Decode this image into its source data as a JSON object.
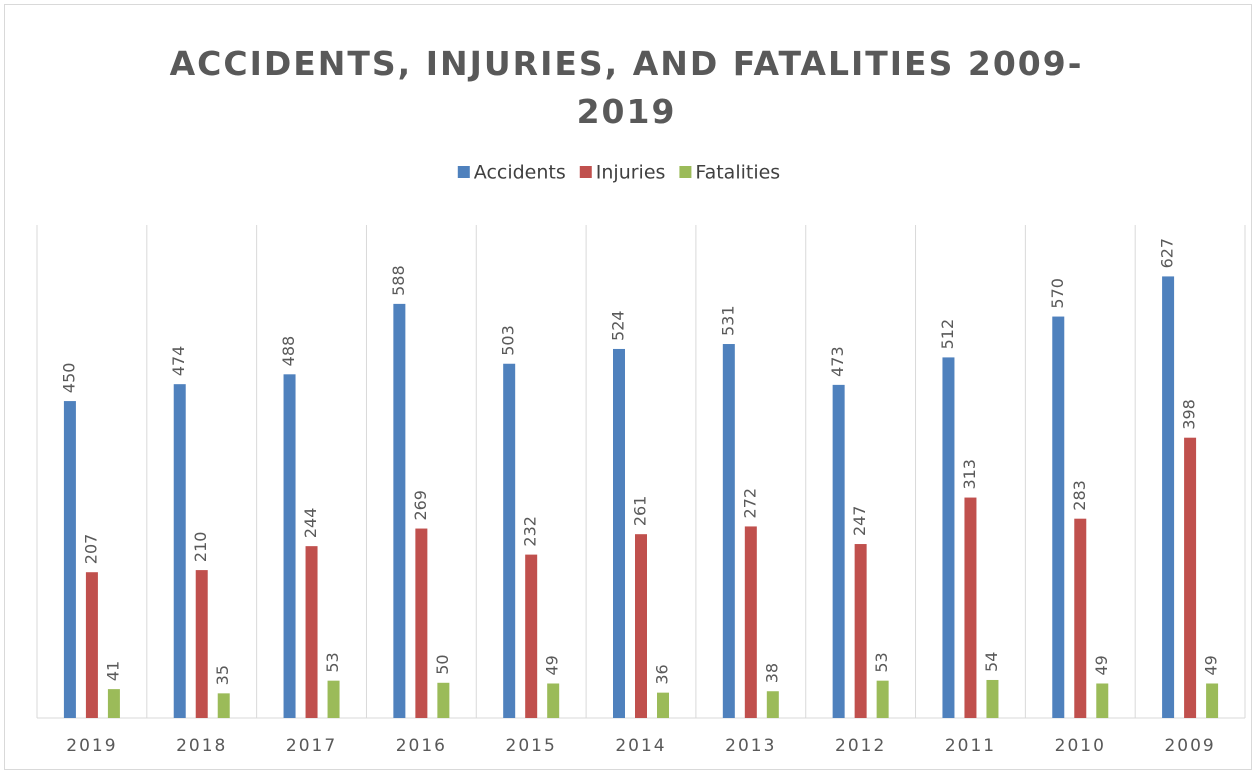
{
  "chart_data": {
    "type": "bar",
    "title": "ACCIDENTS, INJURIES, AND FATALITIES 2009-2019",
    "categories": [
      "2019",
      "2018",
      "2017",
      "2016",
      "2015",
      "2014",
      "2013",
      "2012",
      "2011",
      "2010",
      "2009"
    ],
    "series": [
      {
        "name": "Accidents",
        "color": "#4f81bd",
        "values": [
          450,
          474,
          488,
          588,
          503,
          524,
          531,
          473,
          512,
          570,
          627
        ]
      },
      {
        "name": "Injuries",
        "color": "#c0504d",
        "values": [
          207,
          210,
          244,
          269,
          232,
          261,
          272,
          247,
          313,
          283,
          398
        ]
      },
      {
        "name": "Fatalities",
        "color": "#9bbb59",
        "values": [
          41,
          35,
          53,
          50,
          49,
          36,
          38,
          53,
          54,
          49,
          49
        ]
      }
    ],
    "ylim": [
      0,
      700
    ],
    "legend": "top"
  }
}
